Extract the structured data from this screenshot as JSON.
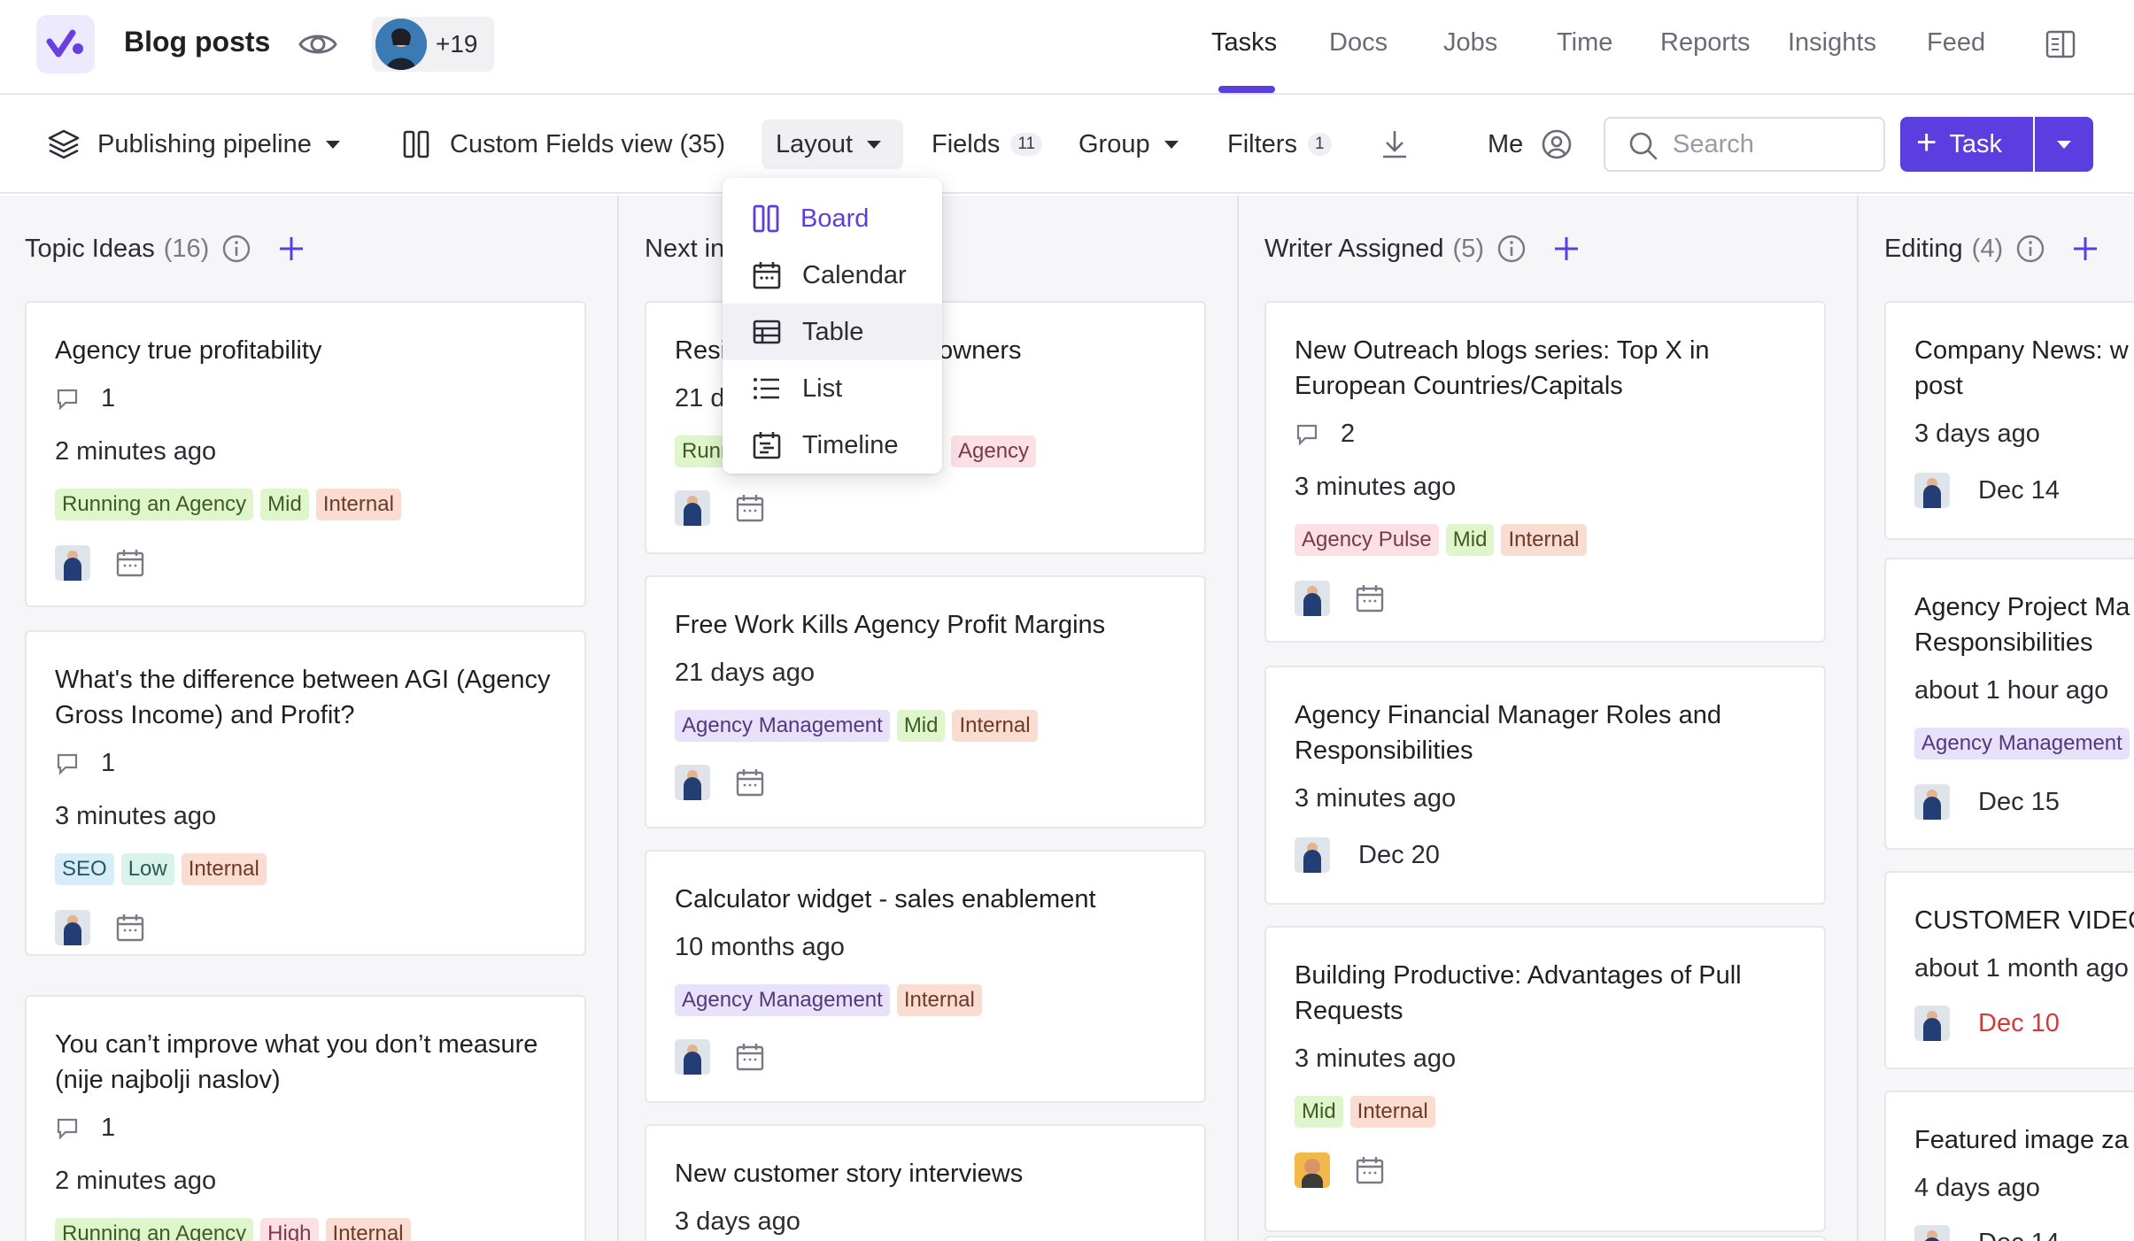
{
  "header": {
    "project_title": "Blog posts",
    "member_count": "+19",
    "nav": [
      "Tasks",
      "Docs",
      "Jobs",
      "Time",
      "Reports",
      "Insights",
      "Feed"
    ],
    "active_nav": "Tasks"
  },
  "toolbar": {
    "pipeline": "Publishing pipeline",
    "view": "Custom Fields view (35)",
    "layout": "Layout",
    "fields": "Fields",
    "fields_count": "11",
    "group": "Group",
    "filters": "Filters",
    "filters_count": "1",
    "me": "Me",
    "search_placeholder": "Search",
    "task_button": "Task"
  },
  "layout_menu": {
    "items": [
      "Board",
      "Calendar",
      "Table",
      "List",
      "Timeline"
    ],
    "selected": "Board",
    "hovered": "Table"
  },
  "columns": [
    {
      "title": "Topic Ideas",
      "count": "(16)",
      "cards": [
        {
          "title": "Agency true profitability",
          "comments": "1",
          "time": "2 minutes ago",
          "tags": [
            "Running an Agency",
            "Mid",
            "Internal"
          ]
        },
        {
          "title": "What's the difference between AGI (Agency Gross Income) and Profit?",
          "comments": "1",
          "time": "3 minutes ago",
          "tags": [
            "SEO",
            "Low",
            "Internal"
          ]
        },
        {
          "title": "You can’t improve what you don’t measure (nije najbolji naslov)",
          "comments": "1",
          "time": "2 minutes ago",
          "tags": [
            "Running an Agency",
            "High",
            "Internal"
          ]
        }
      ]
    },
    {
      "title": "Next in",
      "count": "",
      "cards": [
        {
          "title_left": "Resi",
          "title_right": "owners",
          "time": "21 d",
          "tags": [
            "Runn",
            "Agency"
          ]
        },
        {
          "title": "Free Work Kills Agency Profit Margins",
          "time": "21 days ago",
          "tags": [
            "Agency Management",
            "Mid",
            "Internal"
          ]
        },
        {
          "title": "Calculator widget - sales enablement",
          "time": "10 months ago",
          "tags": [
            "Agency Management",
            "Internal"
          ]
        },
        {
          "title": "New customer story interviews",
          "time": "3 days ago"
        }
      ]
    },
    {
      "title": "Writer Assigned",
      "count": "(5)",
      "cards": [
        {
          "title": "New Outreach blogs series: Top X in European Countries/Capitals",
          "comments": "2",
          "time": "3 minutes ago",
          "tags": [
            "Agency Pulse",
            "Mid",
            "Internal"
          ]
        },
        {
          "title": "Agency Financial Manager Roles and Responsibilities",
          "time": "3 minutes ago",
          "due": "Dec 20"
        },
        {
          "title": "Building Productive: Advantages of Pull Requests",
          "time": "3 minutes ago",
          "tags": [
            "Mid",
            "Internal"
          ]
        }
      ]
    },
    {
      "title": "Editing",
      "count": "(4)",
      "cards": [
        {
          "title": "Company News: w post",
          "time": "3 days ago",
          "due": "Dec 14"
        },
        {
          "title": "Agency Project Ma Responsibilities",
          "time": "about 1 hour ago",
          "tags": [
            "Agency Management"
          ],
          "due": "Dec 15"
        },
        {
          "title": "CUSTOMER VIDEO",
          "time": "about 1 month ago",
          "due": "Dec 10"
        },
        {
          "title": "Featured image za",
          "time": "4 days ago",
          "due": "Dec 14"
        }
      ]
    }
  ],
  "colors": {
    "accent": "#5b3ee0",
    "overdue": "#d23b3b",
    "tag_green": "#dff5cc",
    "tag_orange": "#fbdcd0",
    "tag_purple": "#e9e1fa",
    "tag_pink": "#fbe0e6",
    "tag_blue": "#d7eef8",
    "tag_mint": "#d9f3ec"
  }
}
